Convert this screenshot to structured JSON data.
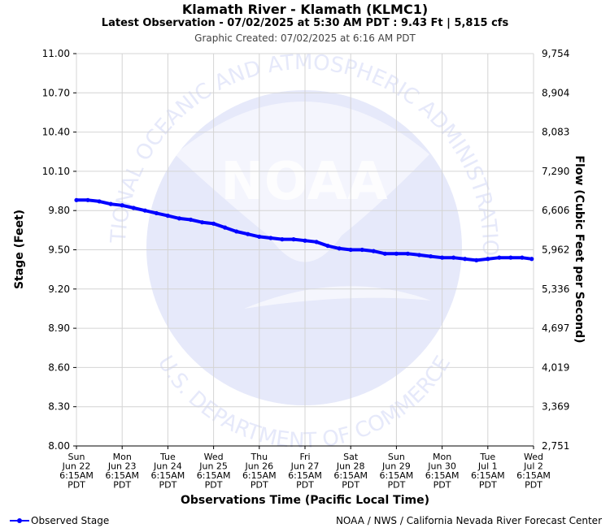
{
  "header": {
    "title": "Klamath River - Klamath (KLMC1)",
    "subtitle": "Latest Observation - 07/02/2025 at 5:30 AM PDT : 9.43 Ft | 5,815 cfs",
    "created": "Graphic Created: 07/02/2025 at 6:16 AM PDT"
  },
  "watermark": {
    "logo_text": "NOAA",
    "ring_top": "NATIONAL OCEANIC AND ATMOSPHERIC ADMINISTRATION",
    "ring_bottom": "U.S. DEPARTMENT OF COMMERCE",
    "color": "#e6e9fa"
  },
  "footer": {
    "legend_label": "Observed Stage",
    "credit": "NOAA / NWS / California Nevada River Forecast Center"
  },
  "chart_data": {
    "type": "line",
    "xlabel": "Observations Time (Pacific Local Time)",
    "ylabel": "Stage (Feet)",
    "y2label": "Flow (Cubic Feet per Second)",
    "ylim": [
      8.0,
      11.0
    ],
    "xlim": [
      0,
      10
    ],
    "grid": true,
    "legend_position": "bottom-left",
    "line_color": "#0000ff",
    "y_ticks": [
      "11.00",
      "10.70",
      "10.40",
      "10.10",
      "9.80",
      "9.50",
      "9.20",
      "8.90",
      "8.60",
      "8.30",
      "8.00"
    ],
    "y2_ticks": [
      "9,754",
      "8,904",
      "8,083",
      "7,290",
      "6,606",
      "5,962",
      "5,336",
      "4,697",
      "4,019",
      "3,369",
      "2,751"
    ],
    "x_ticks": [
      [
        "Sun",
        "Jun 22",
        "6:15AM",
        "PDT"
      ],
      [
        "Mon",
        "Jun 23",
        "6:15AM",
        "PDT"
      ],
      [
        "Tue",
        "Jun 24",
        "6:15AM",
        "PDT"
      ],
      [
        "Wed",
        "Jun 25",
        "6:15AM",
        "PDT"
      ],
      [
        "Thu",
        "Jun 26",
        "6:15AM",
        "PDT"
      ],
      [
        "Fri",
        "Jun 27",
        "6:15AM",
        "PDT"
      ],
      [
        "Sat",
        "Jun 28",
        "6:15AM",
        "PDT"
      ],
      [
        "Sun",
        "Jun 29",
        "6:15AM",
        "PDT"
      ],
      [
        "Mon",
        "Jun 30",
        "6:15AM",
        "PDT"
      ],
      [
        "Tue",
        "Jul 1",
        "6:15AM",
        "PDT"
      ],
      [
        "Wed",
        "Jul 2",
        "6:15AM",
        "PDT"
      ]
    ],
    "series": [
      {
        "name": "Observed Stage",
        "x": [
          0,
          0.25,
          0.5,
          0.75,
          1.0,
          1.25,
          1.5,
          1.75,
          2.0,
          2.25,
          2.5,
          2.75,
          3.0,
          3.25,
          3.5,
          3.75,
          4.0,
          4.25,
          4.5,
          4.75,
          5.0,
          5.25,
          5.5,
          5.75,
          6.0,
          6.25,
          6.5,
          6.75,
          7.0,
          7.25,
          7.5,
          7.75,
          8.0,
          8.25,
          8.5,
          8.75,
          9.0,
          9.25,
          9.5,
          9.75,
          9.96
        ],
        "y": [
          9.88,
          9.88,
          9.87,
          9.85,
          9.84,
          9.82,
          9.8,
          9.78,
          9.76,
          9.74,
          9.73,
          9.71,
          9.7,
          9.67,
          9.64,
          9.62,
          9.6,
          9.59,
          9.58,
          9.58,
          9.57,
          9.56,
          9.53,
          9.51,
          9.5,
          9.5,
          9.49,
          9.47,
          9.47,
          9.47,
          9.46,
          9.45,
          9.44,
          9.44,
          9.43,
          9.42,
          9.43,
          9.44,
          9.44,
          9.44,
          9.43
        ]
      }
    ]
  }
}
